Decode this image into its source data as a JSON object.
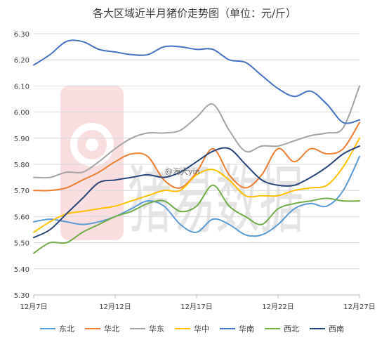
{
  "chart_data": {
    "type": "line",
    "title": "各大区域近半月猪价走势图（单位：元/斤）",
    "xlabel": "",
    "ylabel": "",
    "ylim": [
      5.3,
      6.3
    ],
    "yticks": [
      "5.30",
      "5.40",
      "5.50",
      "5.60",
      "5.70",
      "5.80",
      "5.90",
      "6.00",
      "6.10",
      "6.20",
      "6.30"
    ],
    "xlim": [
      1,
      41
    ],
    "xticks": [
      {
        "x": 1,
        "label": "12月7日"
      },
      {
        "x": 11,
        "label": "12月12日"
      },
      {
        "x": 21,
        "label": "12月17日"
      },
      {
        "x": 31,
        "label": "12月22日"
      },
      {
        "x": 41,
        "label": "12月27日"
      }
    ],
    "grid": "horizontal",
    "legend_position": "bottom",
    "series": [
      {
        "name": "东北",
        "color": "#5B9BD5",
        "points": [
          [
            1,
            5.58
          ],
          [
            3,
            5.59
          ],
          [
            5,
            5.58
          ],
          [
            7,
            5.57
          ],
          [
            9,
            5.58
          ],
          [
            11,
            5.6
          ],
          [
            13,
            5.63
          ],
          [
            15,
            5.66
          ],
          [
            17,
            5.64
          ],
          [
            19,
            5.57
          ],
          [
            21,
            5.54
          ],
          [
            23,
            5.59
          ],
          [
            25,
            5.57
          ],
          [
            27,
            5.53
          ],
          [
            29,
            5.53
          ],
          [
            31,
            5.57
          ],
          [
            33,
            5.63
          ],
          [
            35,
            5.65
          ],
          [
            37,
            5.64
          ],
          [
            39,
            5.7
          ],
          [
            41,
            5.83
          ]
        ]
      },
      {
        "name": "华北",
        "color": "#ED7D31",
        "points": [
          [
            1,
            5.7
          ],
          [
            3,
            5.7
          ],
          [
            5,
            5.71
          ],
          [
            7,
            5.74
          ],
          [
            9,
            5.77
          ],
          [
            11,
            5.81
          ],
          [
            13,
            5.84
          ],
          [
            15,
            5.83
          ],
          [
            17,
            5.74
          ],
          [
            19,
            5.71
          ],
          [
            21,
            5.77
          ],
          [
            23,
            5.86
          ],
          [
            25,
            5.76
          ],
          [
            27,
            5.71
          ],
          [
            29,
            5.76
          ],
          [
            31,
            5.86
          ],
          [
            33,
            5.81
          ],
          [
            35,
            5.86
          ],
          [
            37,
            5.84
          ],
          [
            39,
            5.86
          ],
          [
            41,
            5.96
          ]
        ]
      },
      {
        "name": "华东",
        "color": "#A5A5A5",
        "points": [
          [
            1,
            5.75
          ],
          [
            3,
            5.75
          ],
          [
            5,
            5.77
          ],
          [
            7,
            5.77
          ],
          [
            9,
            5.81
          ],
          [
            11,
            5.86
          ],
          [
            13,
            5.9
          ],
          [
            15,
            5.92
          ],
          [
            17,
            5.92
          ],
          [
            19,
            5.93
          ],
          [
            21,
            5.98
          ],
          [
            23,
            6.03
          ],
          [
            25,
            5.93
          ],
          [
            27,
            5.85
          ],
          [
            29,
            5.87
          ],
          [
            31,
            5.87
          ],
          [
            33,
            5.89
          ],
          [
            35,
            5.91
          ],
          [
            37,
            5.92
          ],
          [
            39,
            5.94
          ],
          [
            41,
            6.1
          ]
        ]
      },
      {
        "name": "华中",
        "color": "#FFC000",
        "points": [
          [
            1,
            5.54
          ],
          [
            3,
            5.58
          ],
          [
            5,
            5.61
          ],
          [
            7,
            5.62
          ],
          [
            9,
            5.63
          ],
          [
            11,
            5.64
          ],
          [
            13,
            5.66
          ],
          [
            15,
            5.68
          ],
          [
            17,
            5.7
          ],
          [
            19,
            5.7
          ],
          [
            21,
            5.76
          ],
          [
            23,
            5.78
          ],
          [
            25,
            5.74
          ],
          [
            27,
            5.68
          ],
          [
            29,
            5.68
          ],
          [
            31,
            5.68
          ],
          [
            33,
            5.7
          ],
          [
            35,
            5.71
          ],
          [
            37,
            5.72
          ],
          [
            39,
            5.79
          ],
          [
            41,
            5.9
          ]
        ]
      },
      {
        "name": "华南",
        "color": "#4472C4",
        "points": [
          [
            1,
            6.18
          ],
          [
            3,
            6.22
          ],
          [
            5,
            6.27
          ],
          [
            7,
            6.27
          ],
          [
            9,
            6.24
          ],
          [
            11,
            6.23
          ],
          [
            13,
            6.22
          ],
          [
            15,
            6.22
          ],
          [
            17,
            6.25
          ],
          [
            19,
            6.25
          ],
          [
            21,
            6.24
          ],
          [
            23,
            6.24
          ],
          [
            25,
            6.2
          ],
          [
            27,
            6.19
          ],
          [
            29,
            6.14
          ],
          [
            31,
            6.09
          ],
          [
            33,
            6.06
          ],
          [
            35,
            6.08
          ],
          [
            37,
            6.03
          ],
          [
            39,
            5.96
          ],
          [
            41,
            5.97
          ]
        ]
      },
      {
        "name": "西北",
        "color": "#70AD47",
        "points": [
          [
            1,
            5.46
          ],
          [
            3,
            5.5
          ],
          [
            5,
            5.5
          ],
          [
            7,
            5.54
          ],
          [
            9,
            5.57
          ],
          [
            11,
            5.6
          ],
          [
            13,
            5.62
          ],
          [
            15,
            5.65
          ],
          [
            17,
            5.66
          ],
          [
            19,
            5.62
          ],
          [
            21,
            5.64
          ],
          [
            23,
            5.72
          ],
          [
            25,
            5.64
          ],
          [
            27,
            5.6
          ],
          [
            29,
            5.57
          ],
          [
            31,
            5.63
          ],
          [
            33,
            5.65
          ],
          [
            35,
            5.66
          ],
          [
            37,
            5.67
          ],
          [
            39,
            5.66
          ],
          [
            41,
            5.66
          ]
        ]
      },
      {
        "name": "西南",
        "color": "#264478",
        "points": [
          [
            1,
            5.52
          ],
          [
            3,
            5.55
          ],
          [
            5,
            5.61
          ],
          [
            7,
            5.67
          ],
          [
            9,
            5.73
          ],
          [
            11,
            5.74
          ],
          [
            13,
            5.75
          ],
          [
            15,
            5.76
          ],
          [
            17,
            5.75
          ],
          [
            19,
            5.77
          ],
          [
            21,
            5.81
          ],
          [
            23,
            5.85
          ],
          [
            25,
            5.86
          ],
          [
            27,
            5.8
          ],
          [
            29,
            5.74
          ],
          [
            31,
            5.72
          ],
          [
            33,
            5.72
          ],
          [
            35,
            5.75
          ],
          [
            37,
            5.79
          ],
          [
            39,
            5.84
          ],
          [
            41,
            5.87
          ]
        ]
      }
    ]
  },
  "watermark": {
    "brand_text": "猪易数据",
    "handle_text": "@海大yin"
  }
}
